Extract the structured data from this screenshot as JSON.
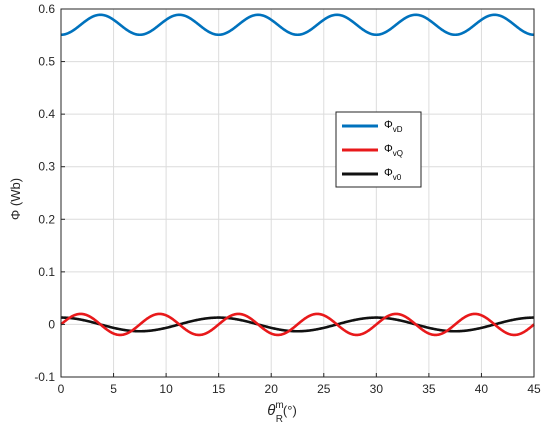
{
  "chart_data": {
    "type": "line",
    "xlabel": "θ",
    "xlabel_sup": "m",
    "xlabel_sub": "R",
    "xlabel_unit": "(°)",
    "ylabel": "Φ  (Wb)",
    "xlim": [
      0,
      45
    ],
    "ylim": [
      -0.1,
      0.6
    ],
    "xticks": [
      0,
      5,
      10,
      15,
      20,
      25,
      30,
      35,
      40,
      45
    ],
    "xtick_labels": [
      "0",
      "5",
      "10",
      "15",
      "20",
      "25",
      "30",
      "35",
      "40",
      "45"
    ],
    "yticks": [
      -0.1,
      0,
      0.1,
      0.2,
      0.3,
      0.4,
      0.5,
      0.6
    ],
    "ytick_labels": [
      "-0.1",
      "0",
      "0.1",
      "0.2",
      "0.3",
      "0.4",
      "0.5",
      "0.6"
    ],
    "grid": true,
    "legend_position": "right",
    "legend": [
      {
        "symbol": "Φ",
        "sub": "vD",
        "color": "#0072BD"
      },
      {
        "symbol": "Φ",
        "sub": "vQ",
        "color": "#E8191B"
      },
      {
        "symbol": "Φ",
        "sub": "v0",
        "color": "#111111"
      }
    ],
    "series": [
      {
        "key": "vD",
        "color": "#0072BD",
        "mean": 0.57,
        "amplitude": 0.019,
        "period": 7.5,
        "phase_deg": 0,
        "x": [
          0,
          3.75,
          7.5,
          11.25,
          15,
          18.75,
          22.5,
          26.25,
          30,
          33.75,
          37.5,
          41.25,
          45
        ],
        "y": [
          0.551,
          0.589,
          0.551,
          0.589,
          0.551,
          0.589,
          0.551,
          0.589,
          0.551,
          0.589,
          0.551,
          0.589,
          0.551
        ]
      },
      {
        "key": "vQ",
        "color": "#E8191B",
        "mean": 0.0,
        "amplitude": 0.02,
        "period": 7.5,
        "phase_deg": 0,
        "x": [
          0,
          1.875,
          3.75,
          5.625,
          7.5,
          9.375,
          11.25,
          13.125,
          15,
          16.875,
          18.75,
          20.625,
          22.5,
          24.375,
          26.25,
          28.125,
          30,
          31.875,
          33.75,
          35.625,
          37.5,
          39.375,
          41.25,
          43.125,
          45
        ],
        "y": [
          0,
          0.02,
          0,
          -0.02,
          0,
          0.02,
          0,
          -0.02,
          0,
          0.02,
          0,
          -0.02,
          0,
          0.02,
          0,
          -0.02,
          0,
          0.02,
          0,
          -0.02,
          0,
          0.02,
          0,
          -0.02,
          0
        ]
      },
      {
        "key": "v0",
        "color": "#111111",
        "mean": 0.0,
        "amplitude": 0.013,
        "period": 15,
        "phase_deg": 90,
        "x": [
          0,
          3.75,
          7.5,
          11.25,
          15,
          18.75,
          22.5,
          26.25,
          30,
          33.75,
          37.5,
          41.25,
          45
        ],
        "y": [
          0.013,
          0,
          -0.013,
          0,
          0.013,
          0,
          -0.013,
          0,
          0.013,
          0,
          -0.013,
          0,
          0.013
        ]
      }
    ]
  }
}
